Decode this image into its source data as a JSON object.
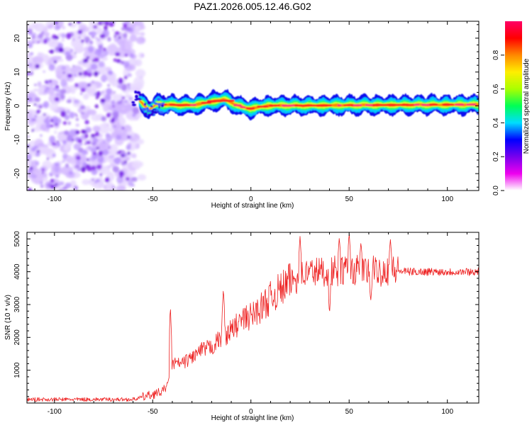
{
  "title": "PAZ1.2026.005.12.46.G02",
  "chart_data": [
    {
      "type": "heatmap",
      "name": "spectrogram",
      "xlabel": "Height of straight line (km)",
      "ylabel": "Frequency (Hz)",
      "xlim": [
        -114,
        116
      ],
      "ylim": [
        -25,
        25
      ],
      "xticks": [
        -100,
        -50,
        0,
        50,
        100
      ],
      "yticks": [
        -20,
        -10,
        0,
        10,
        20
      ],
      "colorbar": {
        "label": "Normalized spectral amplitude",
        "range": [
          0,
          1
        ],
        "ticks": [
          "0.0",
          "0.2",
          "0.4",
          "0.6",
          "0.8"
        ],
        "tick_values": [
          0.0,
          0.2,
          0.4,
          0.6,
          0.8
        ],
        "colormap": [
          "#ffffff",
          "#ee00ee",
          "#7700ee",
          "#0000ff",
          "#00ddff",
          "#00ff55",
          "#aaff00",
          "#ffee00",
          "#ff8800",
          "#ff0000",
          "#ff0066"
        ]
      },
      "noise_region_km": [
        -114,
        -57
      ],
      "signal_track": [
        {
          "x": -57,
          "f": 1.8
        },
        {
          "x": -52,
          "f": -1.2
        },
        {
          "x": -48,
          "f": 0.5
        },
        {
          "x": -40,
          "f": 0.3
        },
        {
          "x": -30,
          "f": 0.2
        },
        {
          "x": -20,
          "f": 1.2
        },
        {
          "x": -14,
          "f": 2.0
        },
        {
          "x": -10,
          "f": 1.0
        },
        {
          "x": -5,
          "f": -0.3
        },
        {
          "x": 0,
          "f": -0.8
        },
        {
          "x": 5,
          "f": -0.3
        },
        {
          "x": 10,
          "f": 0.1
        },
        {
          "x": 30,
          "f": 0.1
        },
        {
          "x": 50,
          "f": 0.2
        },
        {
          "x": 80,
          "f": 0.3
        },
        {
          "x": 116,
          "f": 0.4
        }
      ]
    },
    {
      "type": "line",
      "name": "snr",
      "color": "#ee2222",
      "xlabel": "Height of straight line (km)",
      "ylabel": "SNR (10 * v/v)",
      "xlim": [
        -114,
        116
      ],
      "ylim": [
        0,
        5200
      ],
      "xticks": [
        -100,
        -50,
        0,
        50,
        100
      ],
      "yticks": [
        1000,
        2000,
        3000,
        4000,
        5000
      ],
      "envelope": [
        {
          "x": -114,
          "y": 110
        },
        {
          "x": -60,
          "y": 110
        },
        {
          "x": -50,
          "y": 260
        },
        {
          "x": -45,
          "y": 350
        },
        {
          "x": -42,
          "y": 600
        },
        {
          "x": -40,
          "y": 1200
        },
        {
          "x": -35,
          "y": 1200
        },
        {
          "x": -30,
          "y": 1400
        },
        {
          "x": -25,
          "y": 1600
        },
        {
          "x": -20,
          "y": 1700
        },
        {
          "x": -15,
          "y": 2000
        },
        {
          "x": -10,
          "y": 2200
        },
        {
          "x": -5,
          "y": 2500
        },
        {
          "x": 0,
          "y": 2650
        },
        {
          "x": 5,
          "y": 2900
        },
        {
          "x": 10,
          "y": 3200
        },
        {
          "x": 15,
          "y": 3450
        },
        {
          "x": 20,
          "y": 3700
        },
        {
          "x": 25,
          "y": 3850
        },
        {
          "x": 30,
          "y": 4000
        },
        {
          "x": 40,
          "y": 4000
        },
        {
          "x": 50,
          "y": 4050
        },
        {
          "x": 60,
          "y": 4000
        },
        {
          "x": 70,
          "y": 4050
        },
        {
          "x": 80,
          "y": 4000
        },
        {
          "x": 100,
          "y": 4000
        },
        {
          "x": 116,
          "y": 4000
        }
      ],
      "peaks": [
        {
          "x": -41,
          "y": 3000
        },
        {
          "x": -14,
          "y": 3500
        },
        {
          "x": 25,
          "y": 5100
        },
        {
          "x": 40,
          "y": 2700
        },
        {
          "x": 45,
          "y": 5050
        },
        {
          "x": 50,
          "y": 5200
        },
        {
          "x": 56,
          "y": 4900
        },
        {
          "x": 61,
          "y": 3100
        },
        {
          "x": 71,
          "y": 5000
        }
      ]
    }
  ]
}
